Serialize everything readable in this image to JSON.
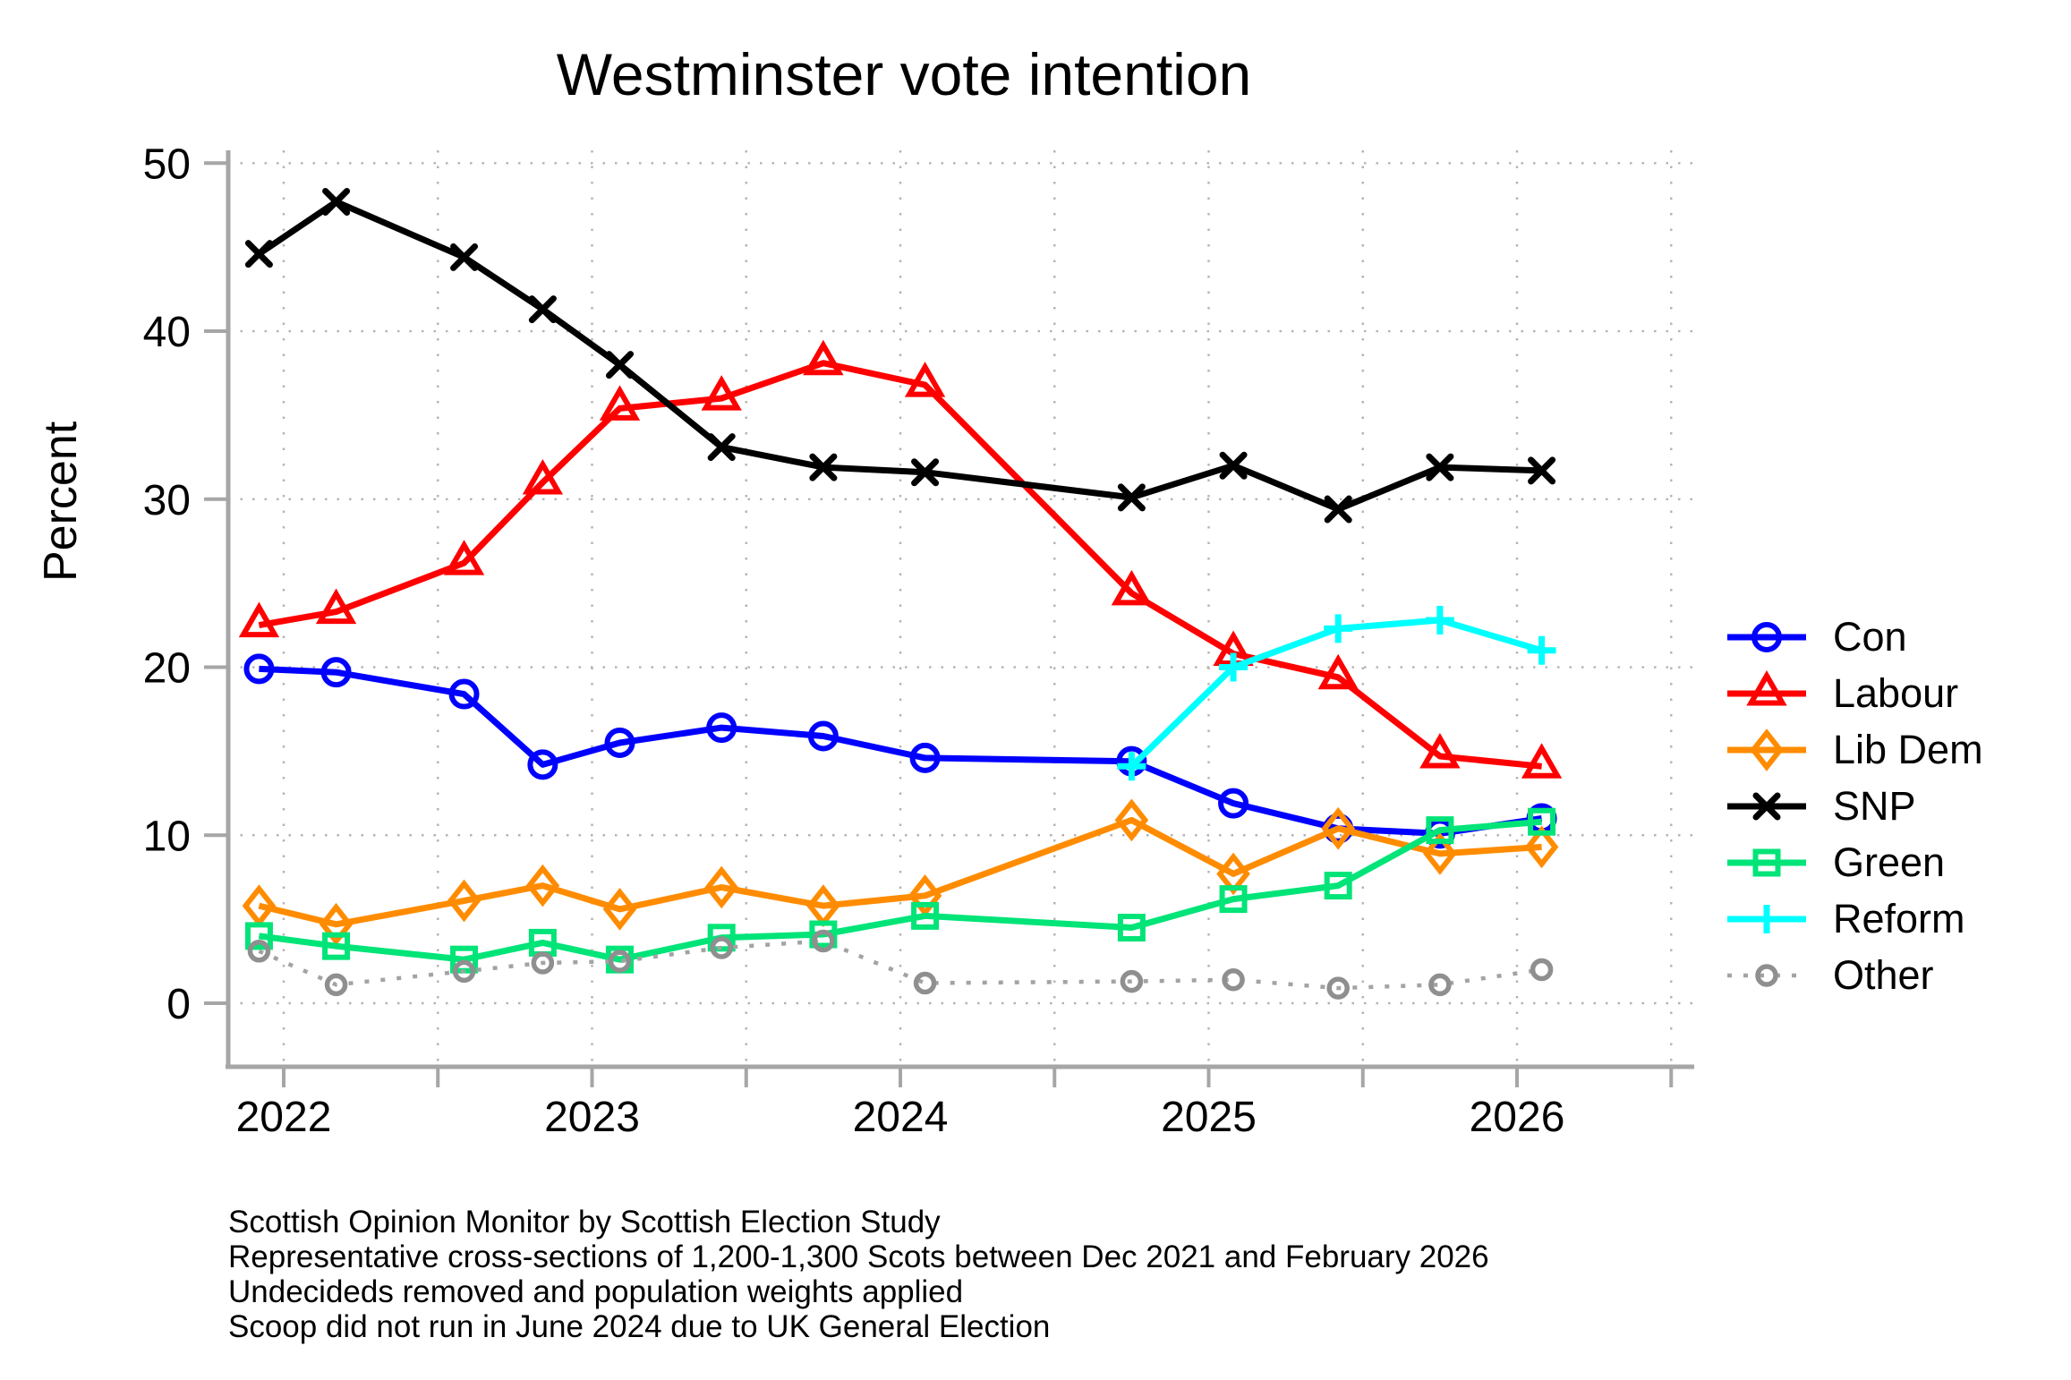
{
  "chart": {
    "title": "Westminster vote intention",
    "ylabel": "Percent",
    "footnotes": [
      "Scottish Opinion Monitor by Scottish Election Study",
      "Representative cross-sections of 1,200-1,300 Scots between Dec 2021 and February 2026",
      "Undecideds removed and population weights applied",
      "Scoop did not run in June 2024 due to UK General Election"
    ]
  },
  "chart_data": {
    "type": "line",
    "title": "Westminster vote intention",
    "xlabel": "",
    "ylabel": "Percent",
    "ylim": [
      0,
      50
    ],
    "xlim": [
      2021.82,
      2026.57
    ],
    "grid": "dotted",
    "legend_position": "right",
    "y_ticks": [
      0,
      10,
      20,
      30,
      40,
      50
    ],
    "x_ticks": [
      2022,
      2023,
      2024,
      2025,
      2026
    ],
    "x_minor_ticks": [
      2022.5,
      2023.5,
      2024.5,
      2025.5,
      2026.5
    ],
    "x": [
      2021.92,
      2022.17,
      2022.585,
      2022.84,
      2023.09,
      2023.42,
      2023.75,
      2024.08,
      2024.75,
      2025.08,
      2025.42,
      2025.75,
      2026.08
    ],
    "series": [
      {
        "name": "Con",
        "color": "#0000ff",
        "marker": "circle",
        "values": [
          19.9,
          19.7,
          18.4,
          14.2,
          15.5,
          16.4,
          15.9,
          14.6,
          14.4,
          11.9,
          10.4,
          10.1,
          11.0
        ]
      },
      {
        "name": "Labour",
        "color": "#ff0000",
        "marker": "triangle",
        "values": [
          22.5,
          23.3,
          26.2,
          31.0,
          35.4,
          36.0,
          38.1,
          36.8,
          24.4,
          20.8,
          19.4,
          14.7,
          14.1
        ]
      },
      {
        "name": "Lib Dem",
        "color": "#ff8c00",
        "marker": "diamond",
        "values": [
          5.8,
          4.7,
          6.1,
          7.0,
          5.6,
          6.9,
          5.8,
          6.4,
          10.9,
          7.7,
          10.4,
          8.9,
          9.3
        ]
      },
      {
        "name": "SNP",
        "color": "#000000",
        "marker": "x",
        "values": [
          44.6,
          47.7,
          44.4,
          41.3,
          38.0,
          33.1,
          31.9,
          31.6,
          30.1,
          32.0,
          29.4,
          31.9,
          31.7
        ]
      },
      {
        "name": "Green",
        "color": "#00e478",
        "marker": "square",
        "values": [
          4.0,
          3.4,
          2.6,
          3.6,
          2.6,
          3.9,
          4.1,
          5.2,
          4.5,
          6.2,
          7.0,
          10.3,
          10.8
        ]
      },
      {
        "name": "Reform",
        "color": "#00ffff",
        "marker": "plus",
        "values": [
          null,
          null,
          null,
          null,
          null,
          null,
          null,
          null,
          14.1,
          20.0,
          22.3,
          22.8,
          21.0
        ]
      },
      {
        "name": "Other",
        "color": "#999999",
        "marker": "small-circle",
        "line_style": "dotted",
        "values": [
          3.1,
          1.1,
          1.9,
          2.4,
          2.5,
          3.3,
          3.7,
          1.2,
          1.3,
          1.4,
          0.9,
          1.1,
          2.0
        ]
      }
    ],
    "axis_color": "#a6a6a6",
    "grid_color": "#b3b3b3",
    "background_color": "#ffffff"
  }
}
